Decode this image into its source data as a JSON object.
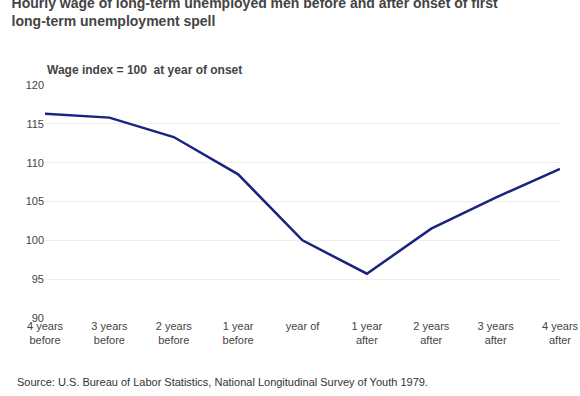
{
  "chart_data": {
    "type": "line",
    "title": "Hourly wage of long-term unemployed men before and after onset of first\nlong-term unemployment spell",
    "subtitle": "Wage index = 100  at year of onset",
    "source": "Source: U.S. Bureau of Labor Statistics, National Longitudinal Survey of Youth 1979.",
    "categories": [
      "4 years\nbefore",
      "3 years\nbefore",
      "2 years\nbefore",
      "1 year\nbefore",
      "year of",
      "1 year\nafter",
      "2 years\nafter",
      "3 years\nafter",
      "4 years\nafter"
    ],
    "values": [
      116.3,
      115.8,
      113.3,
      108.5,
      100.0,
      95.7,
      101.5,
      105.5,
      109.2
    ],
    "color": "#1a237e",
    "ylim": [
      90,
      120
    ],
    "yticks": [
      90,
      95,
      100,
      105,
      110,
      115,
      120
    ],
    "grid": true
  }
}
